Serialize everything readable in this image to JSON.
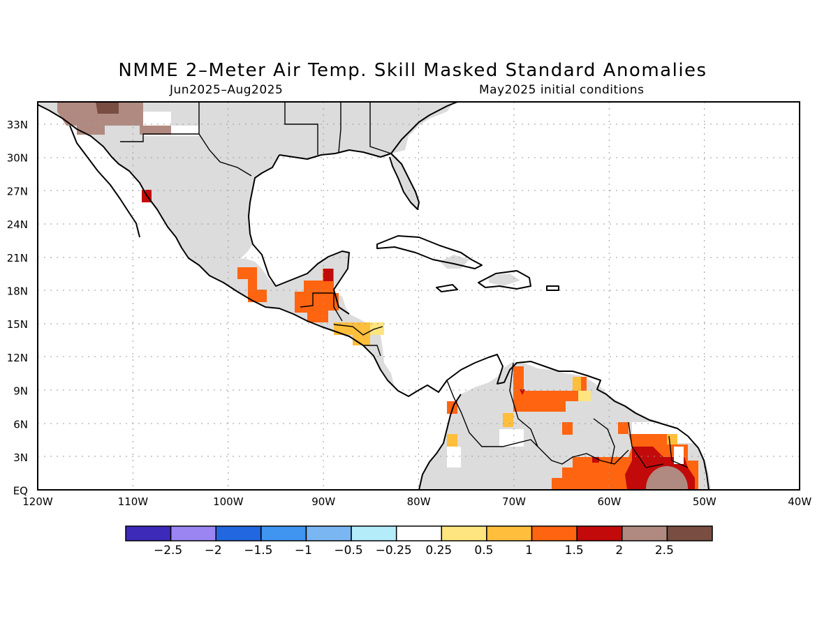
{
  "title": "NMME 2–Meter Air Temp. Skill Masked Standard Anomalies",
  "subtitle_left": "Jun2025–Aug2025",
  "subtitle_right": "May2025 initial conditions",
  "lon_ticks": [
    "120W",
    "110W",
    "100W",
    "90W",
    "80W",
    "70W",
    "60W",
    "50W",
    "40W"
  ],
  "lat_ticks": [
    "33N",
    "30N",
    "27N",
    "24N",
    "21N",
    "18N",
    "15N",
    "12N",
    "9N",
    "6N",
    "3N",
    "EQ"
  ],
  "colorbar": {
    "colors": [
      "#3d2ab8",
      "#9a85f2",
      "#2266e0",
      "#3f95f0",
      "#79b6f2",
      "#b4ecfa",
      "#ffffff",
      "#ffe57f",
      "#ffbe3b",
      "#ff6410",
      "#c20a0a",
      "#b08a80",
      "#7a4d42"
    ],
    "labels": [
      "−2.5",
      "−2",
      "−1.5",
      "−1",
      "−0.5",
      "−0.25",
      "0.25",
      "0.5",
      "1",
      "1.5",
      "2",
      "2.5"
    ]
  },
  "colors": {
    "land_masked": "#dcdcdc",
    "coast": "#000000",
    "grid": "#9a9a9a"
  }
}
